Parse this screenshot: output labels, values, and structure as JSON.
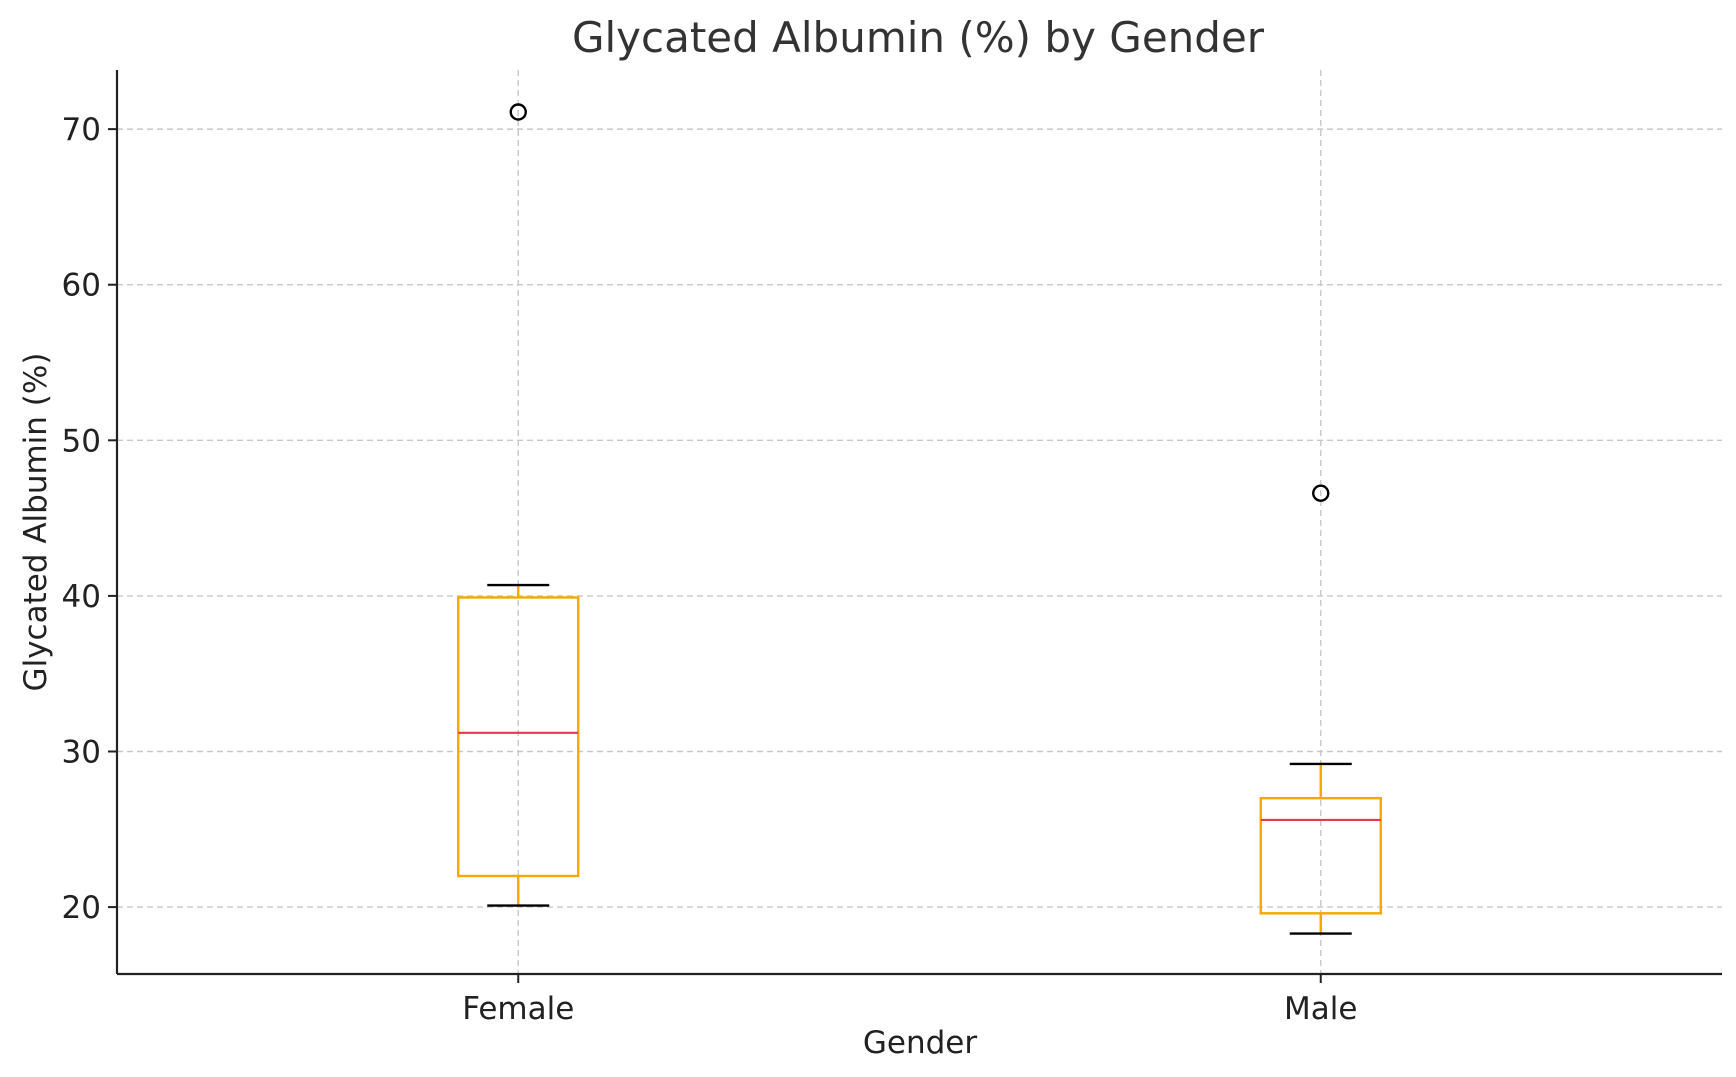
{
  "chart_data": {
    "type": "box",
    "title": "Glycated Albumin (%) by Gender",
    "xlabel": "Gender",
    "ylabel": "Glycated Albumin (%)",
    "ylim": [
      15.7,
      73.8
    ],
    "yticks": [
      20,
      30,
      40,
      50,
      60,
      70
    ],
    "grid": true,
    "categories": [
      "Female",
      "Male"
    ],
    "boxes": [
      {
        "category": "Female",
        "whisker_low": 20.1,
        "q1": 22.0,
        "median": 31.2,
        "q3": 39.9,
        "whisker_high": 40.7,
        "outliers": [
          71.1
        ]
      },
      {
        "category": "Male",
        "whisker_low": 18.3,
        "q1": 19.6,
        "median": 25.6,
        "q3": 27.0,
        "whisker_high": 29.2,
        "outliers": [
          46.6
        ]
      }
    ],
    "colors": {
      "box": "#f5a800",
      "median": "#e8384f",
      "caps": "#000000",
      "fliers": "#000000"
    }
  }
}
